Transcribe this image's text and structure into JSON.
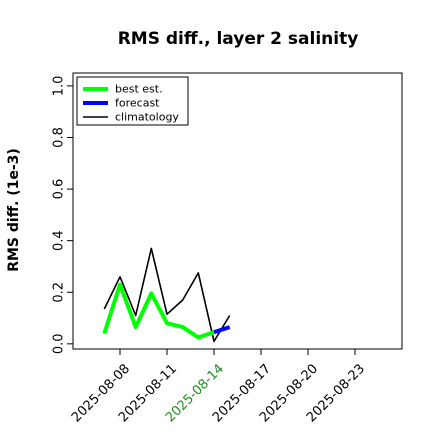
{
  "chart_data": {
    "type": "line",
    "title": "RMS diff., layer 2 salinity",
    "xlabel": "",
    "ylabel": "RMS diff. (1e-3)",
    "ylim": [
      -0.02,
      1.05
    ],
    "xlim": [
      "2025-08-05",
      "2025-08-26"
    ],
    "grid": false,
    "legend_placement": "top-left",
    "y_ticks": [
      "0.0",
      "0.2",
      "0.4",
      "0.6",
      "0.8",
      "1.0"
    ],
    "x_ticks": [
      {
        "label": "2025-08-08",
        "color": "#000000"
      },
      {
        "label": "2025-08-11",
        "color": "#000000"
      },
      {
        "label": "2025-08-14",
        "color": "#228B22"
      },
      {
        "label": "2025-08-17",
        "color": "#000000"
      },
      {
        "label": "2025-08-20",
        "color": "#000000"
      },
      {
        "label": "2025-08-23",
        "color": "#000000"
      }
    ],
    "series": [
      {
        "name": "best est.",
        "color": "#00ff00",
        "x": [
          "2025-08-07",
          "2025-08-08",
          "2025-08-09",
          "2025-08-10",
          "2025-08-11",
          "2025-08-12",
          "2025-08-13",
          "2025-08-14"
        ],
        "values": [
          0.04,
          0.23,
          0.065,
          0.195,
          0.08,
          0.065,
          0.025,
          0.045
        ]
      },
      {
        "name": "forecast",
        "color": "#0000ff",
        "x": [
          "2025-08-14",
          "2025-08-15"
        ],
        "values": [
          0.045,
          0.065
        ]
      },
      {
        "name": "climatology",
        "color": "#000000",
        "x": [
          "2025-08-07",
          "2025-08-08",
          "2025-08-09",
          "2025-08-10",
          "2025-08-11",
          "2025-08-12",
          "2025-08-13",
          "2025-08-14",
          "2025-08-15"
        ],
        "values": [
          0.135,
          0.26,
          0.11,
          0.37,
          0.115,
          0.17,
          0.275,
          0.01,
          0.11
        ]
      }
    ]
  }
}
